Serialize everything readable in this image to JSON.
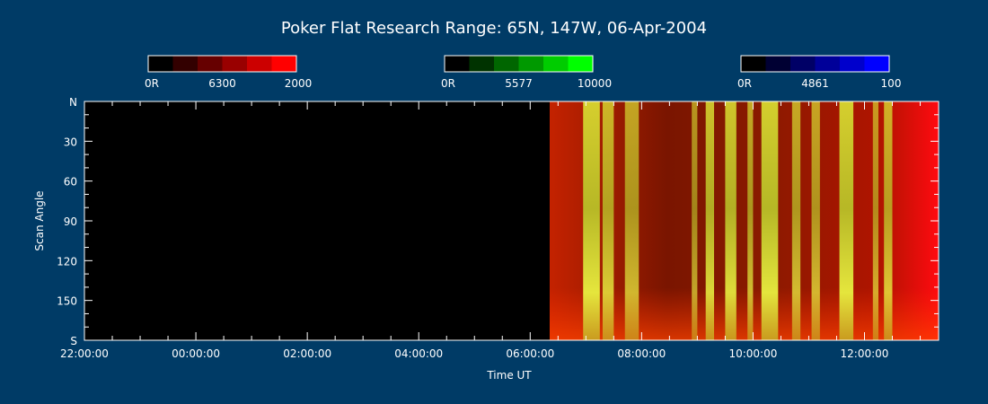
{
  "chart_data": {
    "type": "heatmap",
    "title": "Poker Flat Research Range: 65N, 147W, 06-Apr-2004",
    "xlabel": "Time UT",
    "ylabel": "Scan Angle",
    "x_range_hours": [
      -2.0,
      13.33
    ],
    "x_ticks": [
      {
        "value": -2,
        "label": "22:00:00"
      },
      {
        "value": 0,
        "label": "00:00:00"
      },
      {
        "value": 2,
        "label": "02:00:00"
      },
      {
        "value": 4,
        "label": "04:00:00"
      },
      {
        "value": 6,
        "label": "06:00:00"
      },
      {
        "value": 8,
        "label": "08:00:00"
      },
      {
        "value": 10,
        "label": "10:00:00"
      },
      {
        "value": 12,
        "label": "12:00:00"
      }
    ],
    "y_range": [
      0,
      180
    ],
    "y_ticks": [
      {
        "value": 0,
        "label": "N"
      },
      {
        "value": 30,
        "label": "30"
      },
      {
        "value": 60,
        "label": "60"
      },
      {
        "value": 90,
        "label": "90"
      },
      {
        "value": 120,
        "label": "120"
      },
      {
        "value": 150,
        "label": "150"
      },
      {
        "value": 180,
        "label": "S"
      }
    ],
    "data_start_hours": 6.35,
    "colorbars": [
      {
        "wavelength": "6300",
        "min_label": "0R",
        "max_label": "2000",
        "colors": [
          "#000000",
          "#330000",
          "#660000",
          "#990000",
          "#cc0000",
          "#ff0000"
        ]
      },
      {
        "wavelength": "5577",
        "min_label": "0R",
        "max_label": "10000",
        "colors": [
          "#000000",
          "#003300",
          "#006600",
          "#009900",
          "#00cc00",
          "#00ff00"
        ]
      },
      {
        "wavelength": "4861",
        "min_label": "0R",
        "max_label": "100",
        "colors": [
          "#000000",
          "#000033",
          "#000066",
          "#000099",
          "#0000cc",
          "#0000ff"
        ]
      }
    ],
    "bright_bands": [
      {
        "start": 6.95,
        "end": 7.25,
        "intensity": 1.0
      },
      {
        "start": 7.3,
        "end": 7.5,
        "intensity": 0.75
      },
      {
        "start": 7.7,
        "end": 7.95,
        "intensity": 0.55
      },
      {
        "start": 8.9,
        "end": 9.0,
        "intensity": 0.4
      },
      {
        "start": 9.15,
        "end": 9.3,
        "intensity": 0.85
      },
      {
        "start": 9.5,
        "end": 9.7,
        "intensity": 0.9
      },
      {
        "start": 9.9,
        "end": 10.0,
        "intensity": 0.6
      },
      {
        "start": 10.15,
        "end": 10.45,
        "intensity": 1.0
      },
      {
        "start": 10.7,
        "end": 10.85,
        "intensity": 0.6
      },
      {
        "start": 11.05,
        "end": 11.2,
        "intensity": 0.55
      },
      {
        "start": 11.55,
        "end": 11.8,
        "intensity": 1.0
      },
      {
        "start": 12.15,
        "end": 12.25,
        "intensity": 0.45
      },
      {
        "start": 12.35,
        "end": 12.5,
        "intensity": 0.7
      }
    ]
  }
}
